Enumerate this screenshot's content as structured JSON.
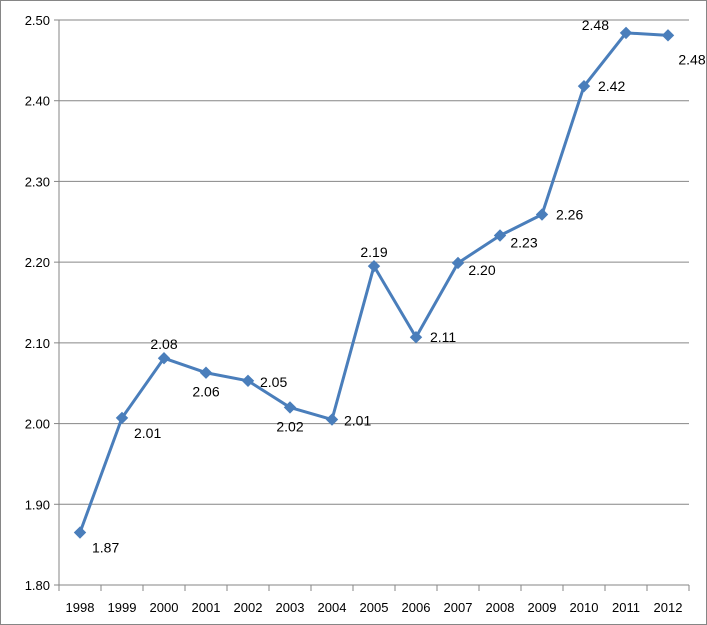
{
  "chart_data": {
    "type": "line",
    "title": "",
    "xlabel": "",
    "ylabel": "",
    "ylim": [
      1.8,
      2.5
    ],
    "y_ticks": [
      "1.80",
      "1.90",
      "2.00",
      "2.10",
      "2.20",
      "2.30",
      "2.40",
      "2.50"
    ],
    "grid": "horizontal",
    "legend": "none",
    "categories": [
      "1998",
      "1999",
      "2000",
      "2001",
      "2002",
      "2003",
      "2004",
      "2005",
      "2006",
      "2007",
      "2008",
      "2009",
      "2010",
      "2011",
      "2012"
    ],
    "series": [
      {
        "values": [
          1.865,
          2.007,
          2.081,
          2.063,
          2.053,
          2.02,
          2.005,
          2.195,
          2.107,
          2.199,
          2.233,
          2.259,
          2.418,
          2.484,
          2.481
        ],
        "data_labels": [
          "1.87",
          "2.01",
          "2.08",
          "2.06",
          "2.05",
          "2.02",
          "2.01",
          "2.19",
          "2.11",
          "2.20",
          "2.23",
          "2.26",
          "2.42",
          "2.48",
          "2.48"
        ],
        "label_positions": [
          "right",
          "right",
          "above",
          "below",
          "right",
          "below",
          "right",
          "above",
          "right",
          "below",
          "below",
          "right",
          "right",
          "left",
          "below"
        ],
        "color": "#4a7ebb"
      }
    ],
    "colors": {
      "line": "#4a7ebb",
      "gridline": "#868686",
      "axis": "#868686"
    }
  }
}
